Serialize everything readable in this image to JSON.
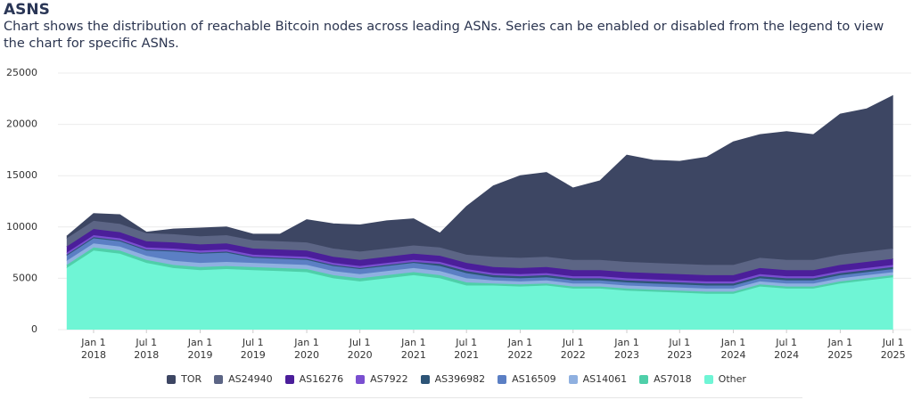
{
  "chart_data": {
    "type": "stacked-area",
    "title": "ASNS",
    "subtitle": "Chart shows the distribution of reachable Bitcoin nodes across leading ASNs. Series can be enabled or disabled from the legend to view the chart for specific ASNs.",
    "x": [
      "2017-10-01",
      "2018-01-01",
      "2018-04-01",
      "2018-07-01",
      "2018-10-01",
      "2019-01-01",
      "2019-04-01",
      "2019-07-01",
      "2019-10-01",
      "2020-01-01",
      "2020-04-01",
      "2020-07-01",
      "2020-10-01",
      "2021-01-01",
      "2021-04-01",
      "2021-07-01",
      "2021-10-01",
      "2022-01-01",
      "2022-04-01",
      "2022-07-01",
      "2022-10-01",
      "2023-01-01",
      "2023-04-01",
      "2023-07-01",
      "2023-10-01",
      "2024-01-01",
      "2024-04-01",
      "2024-07-01",
      "2024-10-01",
      "2025-01-01",
      "2025-04-01",
      "2025-07-01"
    ],
    "xlim": [
      "2017-09-01",
      "2025-09-01"
    ],
    "xticks": [
      {
        "value": "2018-01-01",
        "label": "Jan 1\n2018"
      },
      {
        "value": "2018-07-01",
        "label": "Jul 1\n2018"
      },
      {
        "value": "2019-01-01",
        "label": "Jan 1\n2019"
      },
      {
        "value": "2019-07-01",
        "label": "Jul 1\n2019"
      },
      {
        "value": "2020-01-01",
        "label": "Jan 1\n2020"
      },
      {
        "value": "2020-07-01",
        "label": "Jul 1\n2020"
      },
      {
        "value": "2021-01-01",
        "label": "Jan 1\n2021"
      },
      {
        "value": "2021-07-01",
        "label": "Jul 1\n2021"
      },
      {
        "value": "2022-01-01",
        "label": "Jan 1\n2022"
      },
      {
        "value": "2022-07-01",
        "label": "Jul 1\n2022"
      },
      {
        "value": "2023-01-01",
        "label": "Jan 1\n2023"
      },
      {
        "value": "2023-07-01",
        "label": "Jul 1\n2023"
      },
      {
        "value": "2024-01-01",
        "label": "Jan 1\n2024"
      },
      {
        "value": "2024-07-01",
        "label": "Jul 1\n2024"
      },
      {
        "value": "2025-01-01",
        "label": "Jan 1\n2025"
      },
      {
        "value": "2025-07-01",
        "label": "Jul 1\n2025"
      }
    ],
    "ylim": [
      0,
      25000
    ],
    "yticks": [
      0,
      5000,
      10000,
      15000,
      20000,
      25000
    ],
    "grid": true,
    "legend": "bottom",
    "series": [
      {
        "name": "TOR",
        "color": "#3d4663",
        "values": [
          200,
          700,
          900,
          100,
          500,
          800,
          800,
          600,
          700,
          2200,
          2400,
          2600,
          2700,
          2600,
          1400,
          4700,
          6900,
          8000,
          8200,
          7000,
          7700,
          10400,
          10000,
          10000,
          10500,
          12000,
          12000,
          12500,
          12200,
          13700,
          13900,
          14900
        ]
      },
      {
        "name": "AS24940",
        "color": "#5c6585",
        "values": [
          800,
          800,
          800,
          800,
          800,
          800,
          800,
          800,
          800,
          800,
          800,
          800,
          800,
          800,
          800,
          800,
          1000,
          1000,
          1000,
          1000,
          1000,
          1000,
          1000,
          1000,
          1000,
          1000,
          1000,
          1000,
          1000,
          1000,
          1000,
          1000
        ]
      },
      {
        "name": "AS16276",
        "color": "#4b1e9a",
        "values": [
          600,
          600,
          600,
          600,
          600,
          600,
          600,
          600,
          600,
          600,
          600,
          600,
          600,
          600,
          600,
          600,
          600,
          600,
          600,
          600,
          600,
          600,
          600,
          600,
          600,
          600,
          600,
          600,
          600,
          600,
          600,
          600
        ]
      },
      {
        "name": "AS7922",
        "color": "#7a4fd0",
        "values": [
          200,
          200,
          200,
          200,
          200,
          200,
          200,
          200,
          200,
          200,
          200,
          200,
          200,
          200,
          200,
          200,
          200,
          200,
          200,
          200,
          200,
          200,
          200,
          200,
          200,
          200,
          200,
          200,
          200,
          200,
          200,
          200
        ]
      },
      {
        "name": "AS396982",
        "color": "#2e5577",
        "values": [
          100,
          100,
          100,
          100,
          100,
          100,
          100,
          100,
          100,
          100,
          100,
          100,
          100,
          100,
          200,
          200,
          200,
          200,
          200,
          200,
          200,
          200,
          200,
          200,
          200,
          200,
          200,
          200,
          200,
          200,
          200,
          200
        ]
      },
      {
        "name": "AS16509",
        "color": "#5b7fc4",
        "values": [
          500,
          500,
          500,
          500,
          900,
          900,
          900,
          500,
          500,
          500,
          500,
          500,
          500,
          500,
          500,
          500,
          300,
          300,
          300,
          300,
          300,
          300,
          300,
          300,
          300,
          300,
          300,
          300,
          300,
          300,
          300,
          300
        ]
      },
      {
        "name": "AS14061",
        "color": "#8fb0e0",
        "values": [
          400,
          400,
          400,
          400,
          400,
          400,
          400,
          400,
          400,
          400,
          400,
          400,
          400,
          400,
          400,
          400,
          300,
          300,
          300,
          300,
          300,
          300,
          300,
          300,
          300,
          300,
          300,
          300,
          300,
          300,
          300,
          300
        ]
      },
      {
        "name": "AS7018",
        "color": "#4fcfa9",
        "values": [
          300,
          300,
          300,
          300,
          300,
          300,
          300,
          300,
          300,
          300,
          300,
          300,
          300,
          300,
          300,
          300,
          200,
          200,
          200,
          200,
          200,
          200,
          200,
          200,
          200,
          200,
          200,
          200,
          200,
          200,
          200,
          200
        ]
      },
      {
        "name": "Other",
        "color": "#6ff5d5",
        "values": [
          6000,
          7700,
          7400,
          6500,
          6000,
          5800,
          5900,
          5800,
          5700,
          5600,
          5000,
          4700,
          5000,
          5300,
          5000,
          4300,
          4300,
          4200,
          4300,
          4000,
          4000,
          3800,
          3700,
          3600,
          3500,
          3500,
          4200,
          4000,
          4000,
          4500,
          4800,
          5100
        ]
      }
    ]
  }
}
